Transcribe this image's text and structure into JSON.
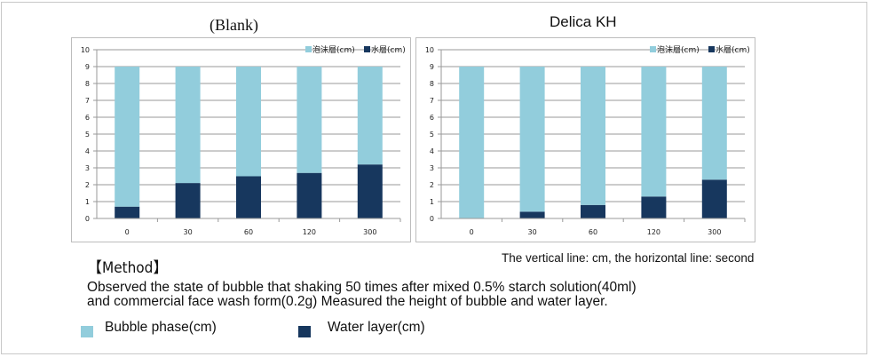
{
  "colors": {
    "bubble": "#92cddc",
    "water": "#17375e",
    "grid": "#9a9a9a"
  },
  "chart_data": [
    {
      "type": "bar",
      "stacked": true,
      "title": "(Blank)",
      "categories": [
        "0",
        "30",
        "60",
        "120",
        "300"
      ],
      "series": [
        {
          "name": "水層(cm)",
          "values": [
            0.7,
            2.1,
            2.5,
            2.7,
            3.2
          ]
        },
        {
          "name": "泡沫層(cm)",
          "values": [
            8.3,
            6.9,
            6.5,
            6.3,
            5.8
          ]
        }
      ],
      "legend_order": [
        "泡沫層(cm)",
        "水層(cm)"
      ],
      "xlabel": "",
      "ylabel": "",
      "ylim": [
        0,
        10
      ],
      "yticks": [
        0,
        1,
        2,
        3,
        4,
        5,
        6,
        7,
        8,
        9,
        10
      ],
      "grid": true,
      "legend": "top-right"
    },
    {
      "type": "bar",
      "stacked": true,
      "title": "Delica KH",
      "categories": [
        "0",
        "30",
        "60",
        "120",
        "300"
      ],
      "series": [
        {
          "name": "水層(cm)",
          "values": [
            0,
            0.4,
            0.8,
            1.3,
            2.3
          ]
        },
        {
          "name": "泡沫層(cm)",
          "values": [
            9,
            8.6,
            8.2,
            7.7,
            6.7
          ]
        }
      ],
      "legend_order": [
        "泡沫層(cm)",
        "水層(cm)"
      ],
      "xlabel": "",
      "ylabel": "",
      "ylim": [
        0,
        10
      ],
      "yticks": [
        0,
        1,
        2,
        3,
        4,
        5,
        6,
        7,
        8,
        9,
        10
      ],
      "grid": true,
      "legend": "top-right"
    }
  ],
  "notes": {
    "method_heading": "【Method】",
    "axis_note": "The vertical line: cm, the horizontal line: second",
    "description_line1": "Observed the state of bubble that shaking 50 times after mixed 0.5% starch solution(40ml)",
    "description_line2": "and commercial face wash form(0.2g) Measured the height of bubble and water layer.",
    "legend_bubble": "Bubble phase(cm)",
    "legend_water": "Water layer(cm)"
  }
}
